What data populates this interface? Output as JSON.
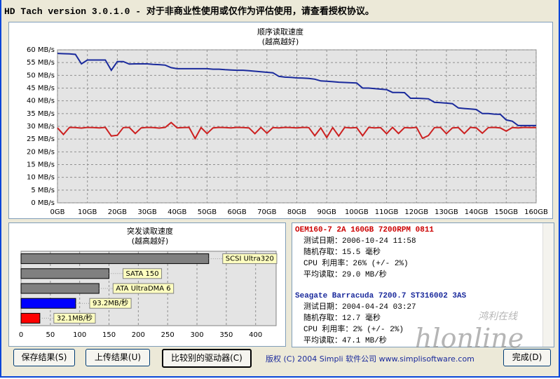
{
  "window": {
    "title": "HD Tach version 3.0.1.0  - 对于非商业性使用或仅作为评估使用，请查看授权协议。"
  },
  "chart_data": [
    {
      "type": "line",
      "title": "顺序读取速度",
      "subtitle": "(越高越好)",
      "x": [
        0,
        2,
        4,
        6,
        8,
        10,
        12,
        14,
        16,
        18,
        20,
        22,
        24,
        26,
        28,
        30,
        32,
        34,
        36,
        38,
        40,
        42,
        44,
        46,
        48,
        50,
        52,
        54,
        56,
        58,
        60,
        62,
        64,
        66,
        68,
        70,
        72,
        74,
        76,
        78,
        80,
        82,
        84,
        86,
        88,
        90,
        92,
        94,
        96,
        98,
        100,
        102,
        104,
        106,
        108,
        110,
        112,
        114,
        116,
        118,
        120,
        122,
        124,
        126,
        128,
        130,
        132,
        134,
        136,
        138,
        140,
        142,
        144,
        146,
        148,
        150,
        152,
        154,
        156,
        158,
        160
      ],
      "series": [
        {
          "color": "#1a2a9c",
          "values": [
            58.6,
            58.5,
            58.4,
            58.2,
            54.5,
            56,
            56,
            56,
            56,
            52,
            55.4,
            55.4,
            54.4,
            54.5,
            54.5,
            54.5,
            54.3,
            54.2,
            54,
            53,
            52.6,
            52.6,
            52.6,
            52.6,
            52.6,
            52.6,
            52.4,
            52.4,
            52.2,
            52.1,
            52,
            52,
            51.8,
            51.6,
            51.4,
            51.2,
            51,
            49.6,
            49.3,
            49.2,
            49,
            48.9,
            48.8,
            48.5,
            47.8,
            47.7,
            47.5,
            47.3,
            47.2,
            47.1,
            47,
            45,
            45,
            44.8,
            44.6,
            44.4,
            43.3,
            43.3,
            43.2,
            41,
            41,
            40.9,
            40.8,
            39.4,
            39.3,
            39.1,
            38.9,
            37.2,
            37,
            36.8,
            36.6,
            35,
            35,
            34.8,
            34.7,
            32.5,
            32,
            30.3,
            30.3,
            30.3,
            30.3
          ]
        },
        {
          "color": "#cc2020",
          "values": [
            29.4,
            26.8,
            29.6,
            29.5,
            29.3,
            29.6,
            29.5,
            29.4,
            29.6,
            26.2,
            26.5,
            29.5,
            29.6,
            27.2,
            29.4,
            29.6,
            29.5,
            29.3,
            29.6,
            31.5,
            29.4,
            29.5,
            29.6,
            25.2,
            29.5,
            27.2,
            29.4,
            29.6,
            29.5,
            29.4,
            29.6,
            29.5,
            29.4,
            27.1,
            29.6,
            27.3,
            29.5,
            29.4,
            29.6,
            29.5,
            29.4,
            29.6,
            29.5,
            26.3,
            29.4,
            25.6,
            29.5,
            26.2,
            29.6,
            29.4,
            29.5,
            26.3,
            29.6,
            29.4,
            29.5,
            27.1,
            29.6,
            27.2,
            29.5,
            29.4,
            29.6,
            25.3,
            26.4,
            29.5,
            29.6,
            27.1,
            29.4,
            29.5,
            27.2,
            29.6,
            29.4,
            27.3,
            29.5,
            29.6,
            29.4,
            28.1,
            29.5,
            29.4,
            29.6,
            29.5,
            29.5
          ]
        }
      ],
      "xlim": [
        0,
        160
      ],
      "ylim": [
        0,
        60
      ],
      "xticks": [
        {
          "value": 0,
          "label": "0GB"
        },
        {
          "value": 10,
          "label": "10GB"
        },
        {
          "value": 20,
          "label": "20GB"
        },
        {
          "value": 30,
          "label": "30GB"
        },
        {
          "value": 40,
          "label": "40GB"
        },
        {
          "value": 50,
          "label": "50GB"
        },
        {
          "value": 60,
          "label": "60GB"
        },
        {
          "value": 70,
          "label": "70GB"
        },
        {
          "value": 80,
          "label": "80GB"
        },
        {
          "value": 90,
          "label": "90GB"
        },
        {
          "value": 100,
          "label": "100GB"
        },
        {
          "value": 110,
          "label": "110GB"
        },
        {
          "value": 120,
          "label": "120GB"
        },
        {
          "value": 130,
          "label": "130GB"
        },
        {
          "value": 140,
          "label": "140GB"
        },
        {
          "value": 150,
          "label": "150GB"
        },
        {
          "value": 160,
          "label": "160GB"
        }
      ],
      "yticks": [
        {
          "value": 0,
          "label": "0 MB/s"
        },
        {
          "value": 5,
          "label": "5 MB/s"
        },
        {
          "value": 10,
          "label": "10 MB/s"
        },
        {
          "value": 15,
          "label": "15 MB/s"
        },
        {
          "value": 20,
          "label": "20 MB/s"
        },
        {
          "value": 25,
          "label": "25 MB/s"
        },
        {
          "value": 30,
          "label": "30 MB/s"
        },
        {
          "value": 35,
          "label": "35 MB/s"
        },
        {
          "value": 40,
          "label": "40 MB/s"
        },
        {
          "value": 45,
          "label": "45 MB/s"
        },
        {
          "value": 50,
          "label": "50 MB/s"
        },
        {
          "value": 55,
          "label": "55 MB/s"
        },
        {
          "value": 60,
          "label": "60 MB/s"
        }
      ],
      "grid": true
    },
    {
      "type": "barh",
      "title": "突发读取速度",
      "subtitle": "(越高越好)",
      "categories": [
        "SCSI Ultra320",
        "SATA 150",
        "ATA UltraDMA 6",
        null,
        null
      ],
      "values": [
        320,
        150,
        133,
        93.2,
        32.1
      ],
      "value_labels": [
        null,
        null,
        null,
        "93.2MB/秒",
        "32.1MB/秒"
      ],
      "colors": [
        "#808080",
        "#808080",
        "#808080",
        "#0000ff",
        "#ff0000"
      ],
      "xlim": [
        0,
        435
      ],
      "xticks": [
        0,
        50,
        100,
        150,
        200,
        250,
        300,
        350,
        400
      ],
      "grid": true
    }
  ],
  "drives": [
    {
      "name": "OEM160-7 2A 160GB 7200RPM 0811",
      "rows": [
        "测试日期：2006-10-24     11:58",
        "随机存取：15.5 毫秒",
        "CPU 利用率：26% (+/- 2%)",
        "平均读取：29.0 MB/秒"
      ]
    },
    {
      "name": "Seagate Barracuda 7200.7 ST316002 3AS",
      "rows": [
        "测试日期：2004-04-24     03:27",
        "随机存取：12.7 毫秒",
        "CPU 利用率：2% (+/- 2%)",
        "平均读取：47.1 MB/秒"
      ]
    }
  ],
  "buttons": [
    "保存结果(S)",
    "上传结果(U)",
    "比较别的驱动器(C)",
    "完成(D)"
  ],
  "copyright": "版权 (C) 2004 Simpli 软件公司 www.simplisoftware.com",
  "watermark": [
    "鸿利在线",
    "hlonline"
  ]
}
